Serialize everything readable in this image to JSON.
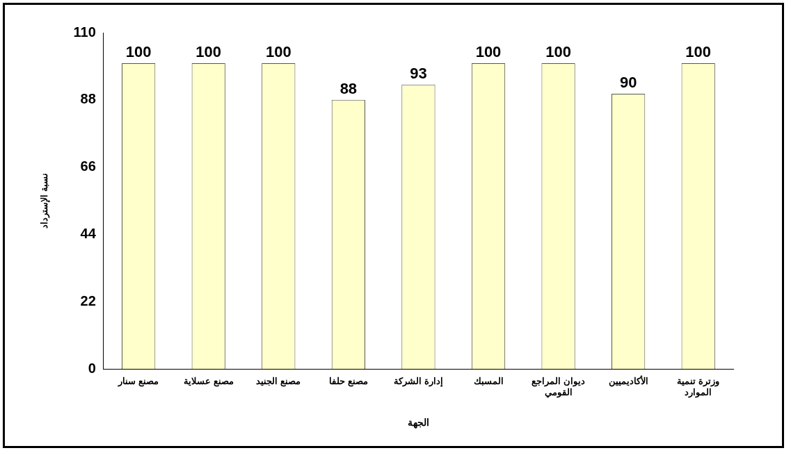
{
  "chart_data": {
    "type": "bar",
    "xlabel": "الجهة",
    "ylabel": "نسبة الإسترداد",
    "categories": [
      "مصنع سنار",
      "مصنع عسلاية",
      "مصنع الجنيد",
      "مصنع حلفا",
      "إدارة الشركة",
      "المسبك",
      "ديوان المراجع القومي",
      "الأكاديميين",
      "وزترة تنمية الموارد"
    ],
    "values": [
      100,
      100,
      100,
      88,
      93,
      100,
      100,
      90,
      100
    ],
    "color": "#ffffcc",
    "ylim": [
      0,
      110
    ],
    "yticks": [
      0,
      22,
      44,
      66,
      88,
      110
    ],
    "grid": false,
    "legend": false,
    "data_labels": true
  }
}
